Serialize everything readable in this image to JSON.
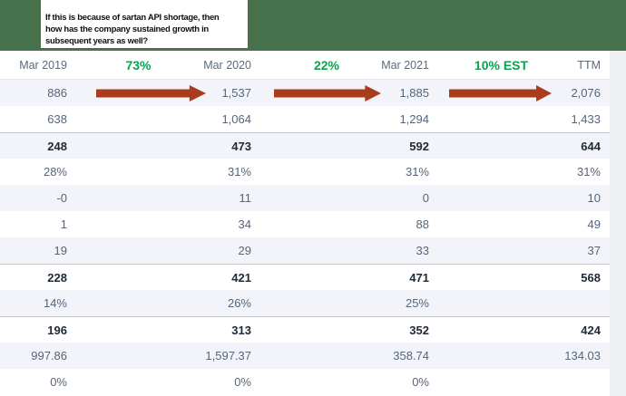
{
  "annotation": {
    "lines": [
      "If this is because of sartan API shortage, then",
      "how has the company sustained growth in",
      "subsequent years as well?"
    ]
  },
  "colors": {
    "banner_green": "#47714b",
    "growth_green": "#0aa24d",
    "arrow_red": "#a93c1d",
    "row_shade": "#f2f4f9",
    "bold_text": "#202b38",
    "normal_text": "#55657a",
    "header_text": "#5b6b7d"
  },
  "table": {
    "header": {
      "periods": [
        "Mar 2019",
        "Mar 2020",
        "Mar 2021",
        "TTM"
      ],
      "growth_labels": [
        "73%",
        "22%",
        "10% EST"
      ]
    },
    "rows": [
      {
        "values": [
          "886",
          "1,537",
          "1,885",
          "2,076"
        ],
        "shaded": true,
        "bold": false,
        "border_top": false,
        "arrows": true
      },
      {
        "values": [
          "638",
          "1,064",
          "1,294",
          "1,433"
        ],
        "shaded": false,
        "bold": false,
        "border_top": false,
        "arrows": false
      },
      {
        "values": [
          "248",
          "473",
          "592",
          "644"
        ],
        "shaded": true,
        "bold": true,
        "border_top": true,
        "arrows": false
      },
      {
        "values": [
          "28%",
          "31%",
          "31%",
          "31%"
        ],
        "shaded": false,
        "bold": false,
        "border_top": false,
        "arrows": false
      },
      {
        "values": [
          "-0",
          "11",
          "0",
          "10"
        ],
        "shaded": true,
        "bold": false,
        "border_top": false,
        "arrows": false
      },
      {
        "values": [
          "1",
          "34",
          "88",
          "49"
        ],
        "shaded": false,
        "bold": false,
        "border_top": false,
        "arrows": false
      },
      {
        "values": [
          "19",
          "29",
          "33",
          "37"
        ],
        "shaded": true,
        "bold": false,
        "border_top": false,
        "arrows": false
      },
      {
        "values": [
          "228",
          "421",
          "471",
          "568"
        ],
        "shaded": false,
        "bold": true,
        "border_top": true,
        "arrows": false
      },
      {
        "values": [
          "14%",
          "26%",
          "25%",
          ""
        ],
        "shaded": true,
        "bold": false,
        "border_top": false,
        "arrows": false
      },
      {
        "values": [
          "196",
          "313",
          "352",
          "424"
        ],
        "shaded": false,
        "bold": true,
        "border_top": true,
        "arrows": false
      },
      {
        "values": [
          "997.86",
          "1,597.37",
          "358.74",
          "134.03"
        ],
        "shaded": true,
        "bold": false,
        "border_top": false,
        "arrows": false
      },
      {
        "values": [
          "0%",
          "0%",
          "0%",
          ""
        ],
        "shaded": false,
        "bold": false,
        "border_top": false,
        "arrows": false
      }
    ]
  }
}
